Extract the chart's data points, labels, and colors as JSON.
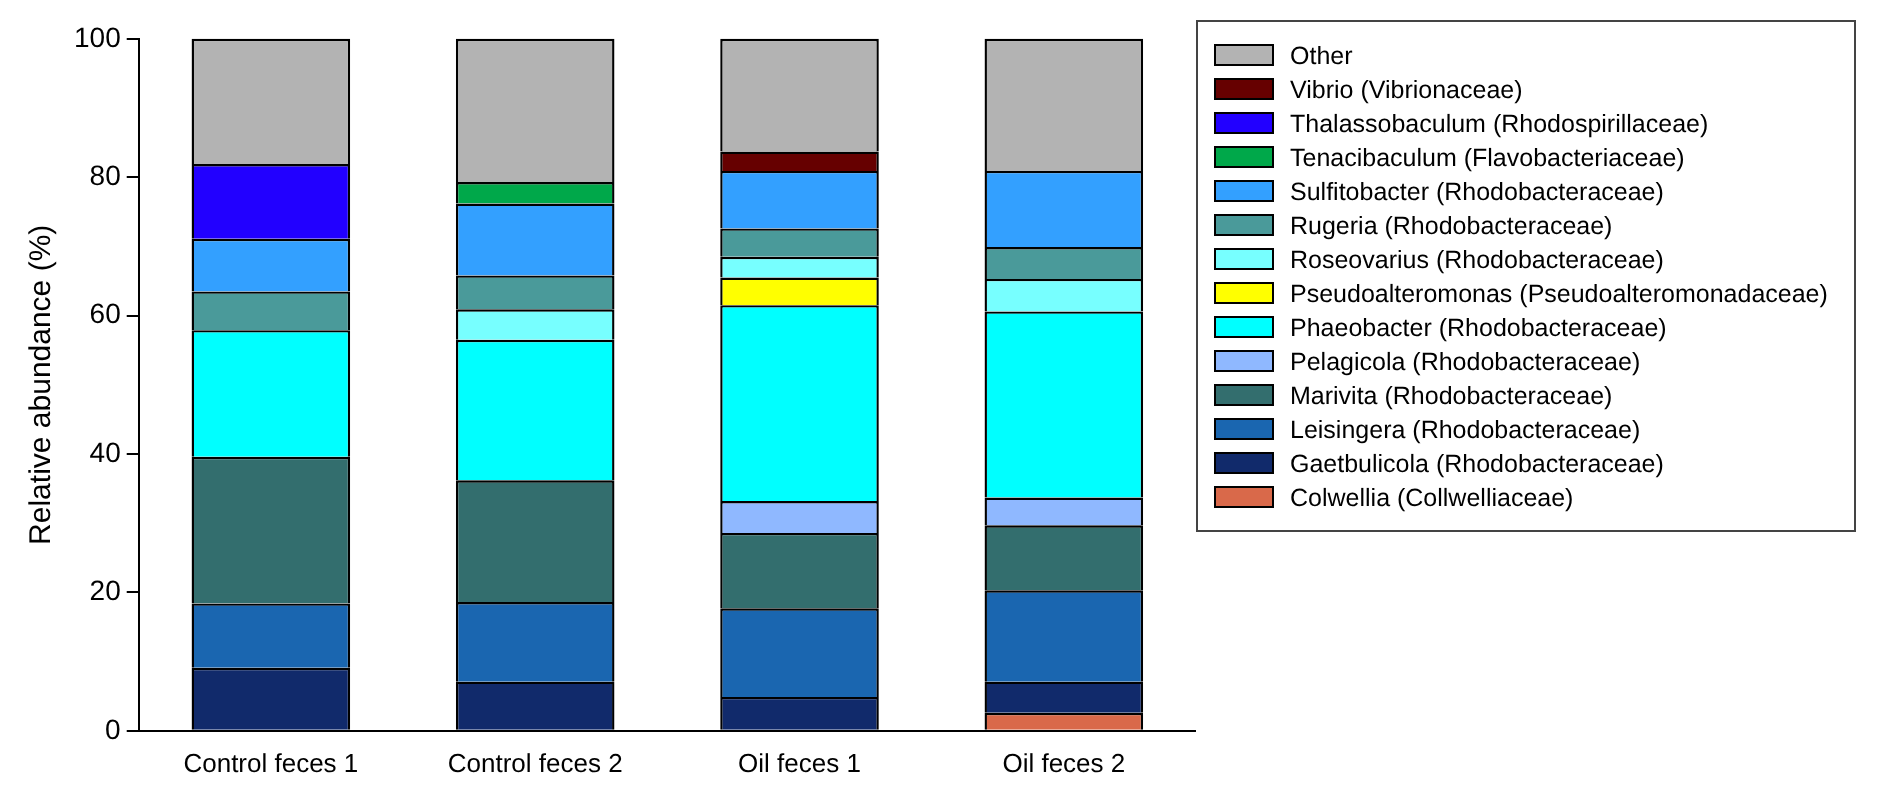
{
  "chart_data": {
    "type": "bar",
    "stacked": true,
    "ylabel": "Relative abundance (%)",
    "categories": [
      "Control feces 1",
      "Control feces 2",
      "Oil feces 1",
      "Oil feces 2"
    ],
    "ylim": [
      0,
      100
    ],
    "yticks": [
      0,
      20,
      40,
      60,
      80,
      100
    ],
    "grid": false,
    "legend": "top right",
    "series": [
      {
        "name": "Colwellia (Collwelliaceae)",
        "color": "#d9694a",
        "values": [
          null,
          null,
          null,
          2.6
        ]
      },
      {
        "name": "Gaetbulicola (Rhodobacteraceae)",
        "color": "#112a6b",
        "values": [
          9.1,
          7.1,
          4.9,
          4.5
        ]
      },
      {
        "name": "Leisingera (Rhodobacteraceae)",
        "color": "#1a66b0",
        "values": [
          9.3,
          11.5,
          12.8,
          13.2
        ]
      },
      {
        "name": "Marivita (Rhodobacteraceae)",
        "color": "#336e6e",
        "values": [
          21.2,
          17.6,
          10.9,
          9.4
        ]
      },
      {
        "name": "Pelagicola (Rhodobacteraceae)",
        "color": "#8fb8ff",
        "values": [
          null,
          null,
          4.6,
          4.0
        ]
      },
      {
        "name": "Phaeobacter (Rhodobacteraceae)",
        "color": "#00ffff",
        "values": [
          18.3,
          20.3,
          28.3,
          26.9
        ]
      },
      {
        "name": "Pseudoalteromonas (Pseudoalteromonadaceae)",
        "color": "#ffff00",
        "values": [
          null,
          null,
          4.0,
          null
        ]
      },
      {
        "name": "Roseovarius (Rhodobacteraceae)",
        "color": "#77ffff",
        "values": [
          null,
          4.4,
          3.0,
          4.7
        ]
      },
      {
        "name": "Rugeria (Rhodobacteraceae)",
        "color": "#4a9a9a",
        "values": [
          5.6,
          4.9,
          4.1,
          4.6
        ]
      },
      {
        "name": "Sulfitobacter (Rhodobacteraceae)",
        "color": "#33a0ff",
        "values": [
          7.6,
          10.4,
          8.3,
          11.0
        ]
      },
      {
        "name": "Tenacibaculum (Flavobacteriaceae)",
        "color": "#00a84a",
        "values": [
          null,
          3.1,
          null,
          null
        ]
      },
      {
        "name": "Thalassobaculum (Rhodospirillaceae)",
        "color": "#2200ff",
        "values": [
          10.8,
          null,
          null,
          null
        ]
      },
      {
        "name": "Vibrio (Vibrionaceae)",
        "color": "#660000",
        "values": [
          null,
          null,
          2.8,
          null
        ]
      },
      {
        "name": "Other",
        "color": "#b3b3b3",
        "values": [
          18.1,
          20.7,
          16.3,
          19.1
        ]
      }
    ]
  }
}
